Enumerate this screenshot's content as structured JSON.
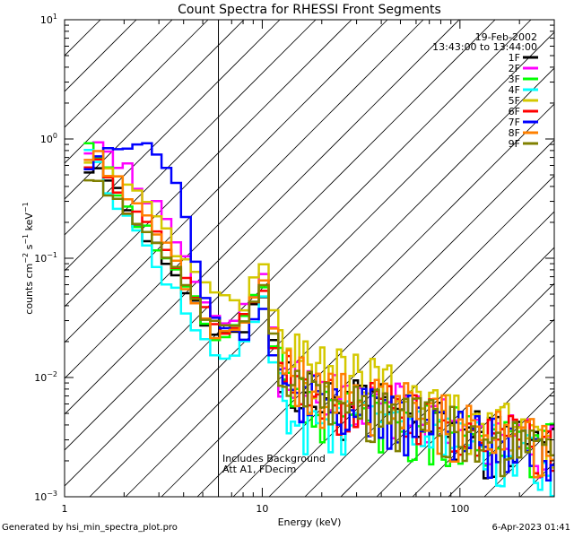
{
  "chart_data": {
    "type": "line",
    "title": "Count Spectra for RHESSI Front Segments",
    "xlabel": "Energy (keV)",
    "ylabel": "counts cm⁻² s⁻¹ keV⁻¹",
    "ylabel_parts": {
      "base": "counts cm",
      "e1": "−2",
      "s": " s",
      "e2": "−1",
      "unit": " keV",
      "e3": "−1"
    },
    "xscale": "log",
    "yscale": "log",
    "xlim": [
      1,
      300
    ],
    "ylim": [
      0.001,
      10
    ],
    "x_ticks": [
      {
        "value": 1,
        "label": "1"
      },
      {
        "value": 10,
        "label": "10"
      },
      {
        "value": 100,
        "label": "100"
      }
    ],
    "y_ticks": [
      {
        "value": 10,
        "base": "10",
        "exp": "1"
      },
      {
        "value": 1,
        "base": "10",
        "exp": "0"
      },
      {
        "value": 0.1,
        "base": "10",
        "exp": "−1"
      },
      {
        "value": 0.01,
        "base": "10",
        "exp": "−2"
      },
      {
        "value": 0.001,
        "base": "10",
        "exp": "−3"
      }
    ],
    "date": "19-Feb-2002",
    "time_range": "13:43:00 to 13:44:00",
    "hatched_region": {
      "x_from": 1,
      "x_to": 6,
      "description": "excluded low-energy region below 6 keV"
    },
    "annotations": [
      "Includes Background",
      "Att A1, FDecim"
    ],
    "legend_position": "top-right",
    "series": [
      {
        "name": "1F",
        "color": "#000000",
        "energies": [
          1.25,
          1.5,
          2,
          3,
          4,
          5,
          6,
          8,
          10,
          11,
          12,
          15,
          20,
          30,
          50,
          70,
          100,
          150,
          200,
          280
        ],
        "values": [
          0.62,
          0.6,
          0.28,
          0.12,
          0.06,
          0.03,
          0.02,
          0.025,
          0.06,
          0.03,
          0.012,
          0.008,
          0.006,
          0.006,
          0.005,
          0.004,
          0.0035,
          0.003,
          0.003,
          0.0025
        ]
      },
      {
        "name": "2F",
        "color": "#ff00ff",
        "energies": [
          1.25,
          1.5,
          2,
          3,
          4,
          5,
          6,
          8,
          10,
          11,
          12,
          15,
          20,
          30,
          50,
          70,
          100,
          150,
          200,
          280
        ],
        "values": [
          0.9,
          0.85,
          0.6,
          0.25,
          0.1,
          0.05,
          0.03,
          0.035,
          0.08,
          0.035,
          0.014,
          0.009,
          0.007,
          0.006,
          0.0055,
          0.0045,
          0.004,
          0.0035,
          0.003,
          0.0025
        ]
      },
      {
        "name": "3F",
        "color": "#00ff00",
        "energies": [
          1.25,
          1.5,
          2,
          3,
          4,
          5,
          6,
          8,
          10,
          11,
          12,
          15,
          20,
          30,
          50,
          70,
          100,
          150,
          200,
          280
        ],
        "values": [
          1.3,
          0.7,
          0.3,
          0.12,
          0.06,
          0.035,
          0.02,
          0.03,
          0.07,
          0.03,
          0.012,
          0.007,
          0.005,
          0.005,
          0.0045,
          0.004,
          0.0035,
          0.003,
          0.0028,
          0.0025
        ]
      },
      {
        "name": "4F",
        "color": "#00ffff",
        "energies": [
          1.25,
          1.5,
          2,
          3,
          4,
          5,
          6,
          8,
          10,
          11,
          12,
          15,
          20,
          30,
          50,
          70,
          100,
          150,
          200,
          280
        ],
        "values": [
          1.2,
          0.55,
          0.22,
          0.08,
          0.04,
          0.02,
          0.012,
          0.02,
          0.05,
          0.02,
          0.008,
          0.005,
          0.004,
          0.004,
          0.0035,
          0.003,
          0.003,
          0.0025,
          0.0022,
          0.002
        ]
      },
      {
        "name": "5F",
        "color": "#d4c800",
        "energies": [
          1.25,
          1.5,
          2,
          3,
          4,
          5,
          6,
          8,
          10,
          11,
          12,
          15,
          20,
          30,
          50,
          70,
          100,
          150,
          200,
          280
        ],
        "values": [
          0.75,
          0.7,
          0.45,
          0.2,
          0.09,
          0.06,
          0.045,
          0.04,
          0.1,
          0.05,
          0.02,
          0.014,
          0.012,
          0.01,
          0.008,
          0.006,
          0.005,
          0.004,
          0.0035,
          0.003
        ]
      },
      {
        "name": "6F",
        "color": "#ff0000",
        "energies": [
          1.25,
          1.5,
          2,
          3,
          4,
          5,
          6,
          8,
          10,
          11,
          12,
          15,
          20,
          30,
          50,
          70,
          100,
          150,
          200,
          280
        ],
        "values": [
          0.7,
          0.6,
          0.3,
          0.14,
          0.07,
          0.04,
          0.025,
          0.03,
          0.07,
          0.03,
          0.012,
          0.008,
          0.006,
          0.006,
          0.005,
          0.004,
          0.0035,
          0.003,
          0.003,
          0.0025
        ]
      },
      {
        "name": "7F",
        "color": "#0000ff",
        "energies": [
          1.25,
          1.5,
          2,
          2.5,
          3,
          3.5,
          4,
          4.5,
          5,
          6,
          8,
          10,
          11,
          12,
          15,
          20,
          30,
          50,
          70,
          100,
          150,
          200,
          280
        ],
        "values": [
          0.6,
          0.75,
          0.82,
          0.85,
          0.8,
          0.5,
          0.3,
          0.1,
          0.05,
          0.03,
          0.02,
          0.04,
          0.02,
          0.012,
          0.008,
          0.006,
          0.005,
          0.0045,
          0.004,
          0.0035,
          0.003,
          0.0028,
          0.0025
        ]
      },
      {
        "name": "8F",
        "color": "#ff8000",
        "energies": [
          1.25,
          1.5,
          2,
          3,
          4,
          5,
          6,
          8,
          10,
          11,
          12,
          15,
          20,
          30,
          50,
          70,
          100,
          150,
          200,
          280
        ],
        "values": [
          0.8,
          0.7,
          0.4,
          0.15,
          0.07,
          0.035,
          0.022,
          0.03,
          0.08,
          0.035,
          0.015,
          0.01,
          0.008,
          0.007,
          0.006,
          0.005,
          0.004,
          0.0035,
          0.003,
          0.0025
        ]
      },
      {
        "name": "9F",
        "color": "#808000",
        "energies": [
          1.25,
          1.5,
          2,
          3,
          4,
          5,
          6,
          8,
          10,
          11,
          12,
          15,
          20,
          30,
          50,
          70,
          100,
          150,
          200,
          280
        ],
        "values": [
          0.55,
          0.45,
          0.25,
          0.12,
          0.06,
          0.035,
          0.025,
          0.025,
          0.06,
          0.03,
          0.012,
          0.008,
          0.006,
          0.0055,
          0.005,
          0.004,
          0.0035,
          0.003,
          0.0028,
          0.0025
        ]
      }
    ]
  },
  "footer": {
    "generated_by": "Generated by hsi_min_spectra_plot.pro",
    "timestamp": "6-Apr-2023 01:41"
  }
}
